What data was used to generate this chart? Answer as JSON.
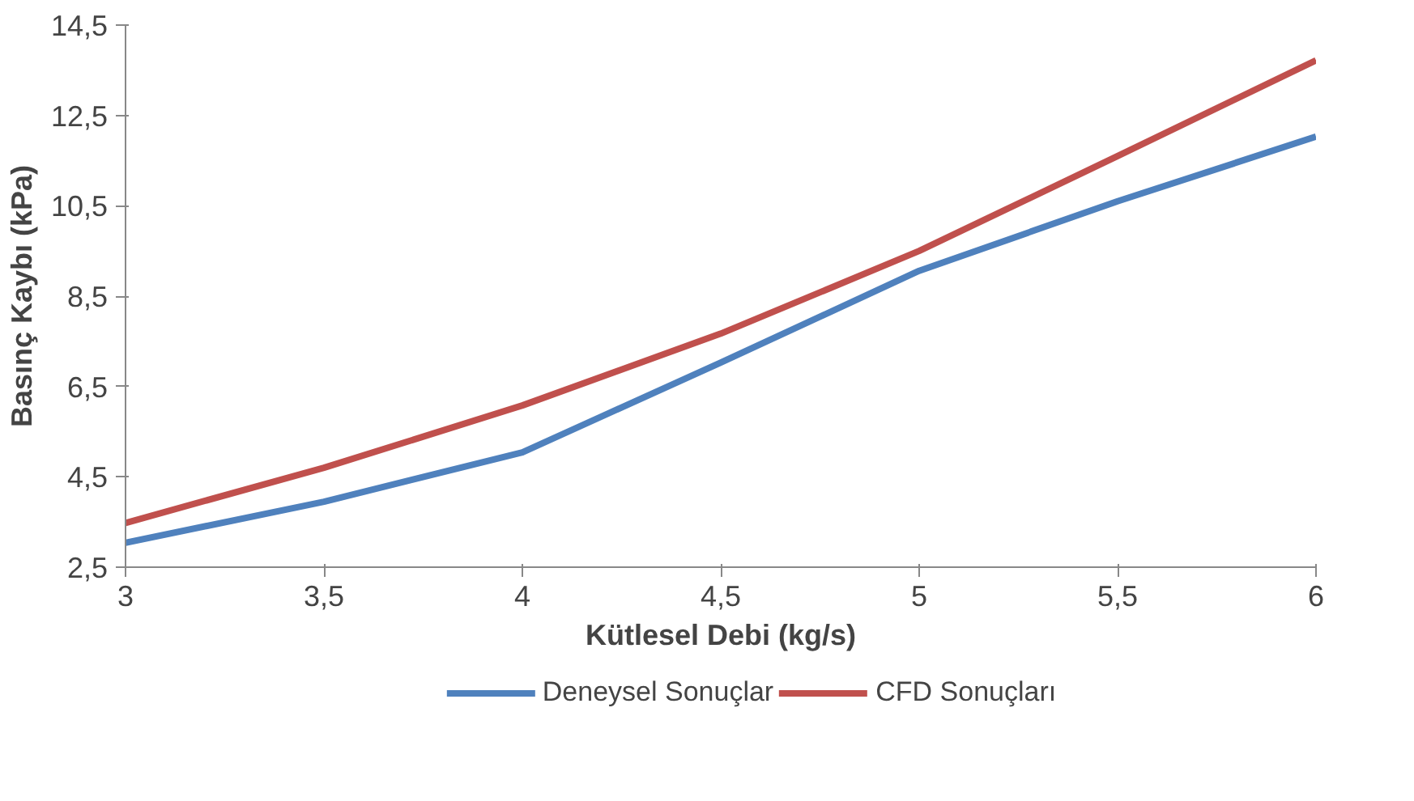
{
  "chart_data": {
    "type": "line",
    "xlabel": "Kütlesel Debi (kg/s)",
    "ylabel": "Basınç Kaybı (kPa)",
    "x": [
      3,
      3.5,
      4,
      4.5,
      5,
      5.5,
      6
    ],
    "series": [
      {
        "name": "Deneysel Sonuçlar",
        "color": "#4f81bd",
        "values": [
          3.04,
          3.95,
          5.04,
          7.03,
          9.06,
          10.6,
          12.03
        ]
      },
      {
        "name": "CFD Sonuçları",
        "color": "#c0504d",
        "values": [
          3.48,
          4.7,
          6.08,
          7.67,
          9.5,
          11.6,
          13.72
        ]
      }
    ],
    "xlim": [
      3,
      6
    ],
    "ylim": [
      2.5,
      14.5
    ],
    "xticks": [
      3,
      {
        "value": 3.5,
        "label": "3,5"
      },
      4,
      {
        "value": 4.5,
        "label": "4,5"
      },
      5,
      {
        "value": 5.5,
        "label": "5,5"
      },
      6
    ],
    "yticks": [
      {
        "value": 2.5,
        "label": "2,5"
      },
      {
        "value": 4.5,
        "label": "4,5"
      },
      {
        "value": 6.5,
        "label": "6,5"
      },
      {
        "value": 8.5,
        "label": "8,5"
      },
      {
        "value": 10.5,
        "label": "10,5"
      },
      {
        "value": 12.5,
        "label": "12,5"
      },
      {
        "value": 14.5,
        "label": "14,5"
      }
    ],
    "grid": false,
    "legend": "bottom",
    "marker": "none",
    "line_style": "solid"
  }
}
